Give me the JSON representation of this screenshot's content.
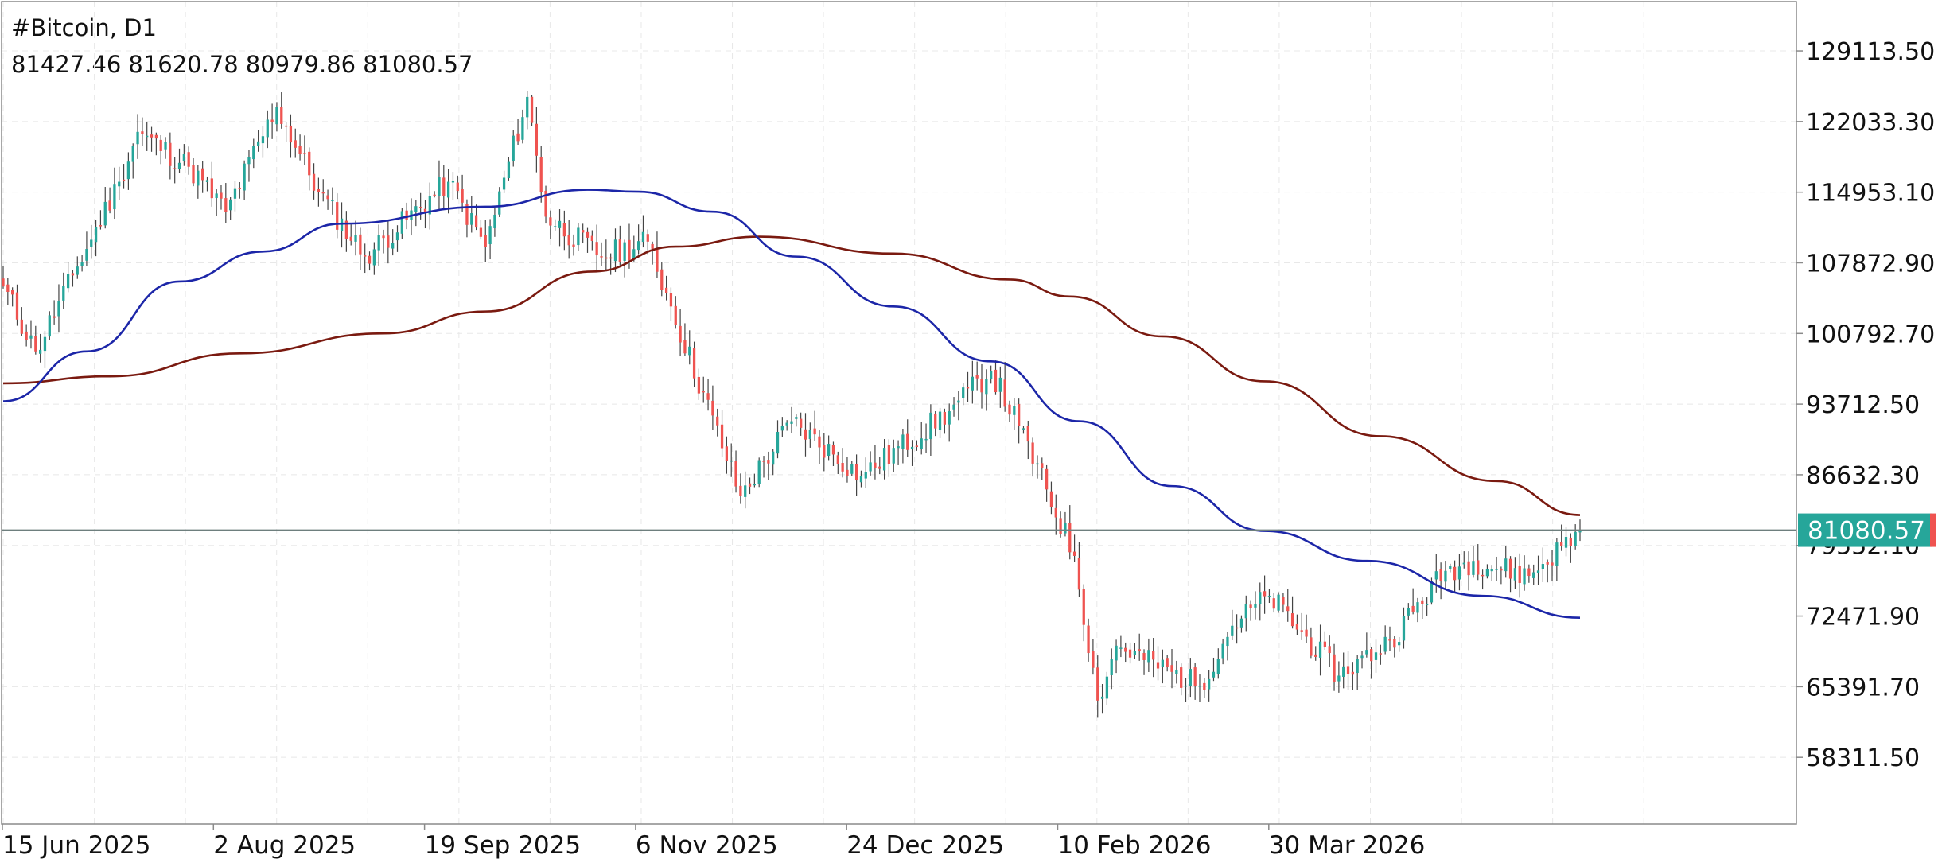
{
  "header": {
    "symbol_timeframe": "#Bitcoin, D1",
    "ohlc": [
      "81427.46",
      "81620.78",
      "80979.86",
      "81080.57"
    ]
  },
  "colors": {
    "bull": "#26a69a",
    "bear": "#ef5350",
    "wick": "#444444",
    "ma_fast": "#1c26a8",
    "ma_slow": "#7a1a10",
    "last_price_line": "#6e7f7e",
    "last_price_badge": "#26a69a",
    "grid": "#e8e8e8",
    "frame": "#8a8a8a"
  },
  "chart_data": {
    "type": "candlestick",
    "timeframe": "D1",
    "y_axis": {
      "ticks": [
        129113.5,
        122033.3,
        114953.1,
        107872.9,
        100792.7,
        93712.5,
        86632.3,
        79552.1,
        72471.9,
        65391.7,
        58311.5
      ],
      "tick_labels": [
        "129113.50",
        "122033.30",
        "114953.10",
        "107872.90",
        "100792.70",
        "93712.50",
        "86632.30",
        "79552.10",
        "72471.90",
        "65391.70",
        "58311.50"
      ],
      "range": [
        51630,
        134060
      ]
    },
    "x_axis": {
      "tick_labels": [
        "15 Jun 2025",
        "2 Aug 2025",
        "19 Sep 2025",
        "6 Nov 2025",
        "24 Dec 2025",
        "10 Feb 2026",
        "30 Mar 2026"
      ],
      "start_date": "2025-06-15",
      "end_date": "2026-05-21"
    },
    "last_price": 81080.57,
    "last_price_label": "81080.57",
    "key_points": [
      {
        "date": "2025-06-15",
        "close": 105500
      },
      {
        "date": "2025-06-22",
        "close": 99000
      },
      {
        "date": "2025-07-01",
        "close": 107500
      },
      {
        "date": "2025-07-10",
        "close": 116000
      },
      {
        "date": "2025-07-14",
        "close": 121000
      },
      {
        "date": "2025-07-25",
        "close": 117500
      },
      {
        "date": "2025-08-02",
        "close": 113000
      },
      {
        "date": "2025-08-13",
        "close": 123500
      },
      {
        "date": "2025-08-22",
        "close": 115000
      },
      {
        "date": "2025-09-01",
        "close": 108500
      },
      {
        "date": "2025-09-19",
        "close": 116000
      },
      {
        "date": "2025-09-27",
        "close": 109500
      },
      {
        "date": "2025-10-06",
        "close": 124500
      },
      {
        "date": "2025-10-10",
        "close": 112500
      },
      {
        "date": "2025-10-22",
        "close": 108500
      },
      {
        "date": "2025-11-01",
        "close": 110000
      },
      {
        "date": "2025-11-06",
        "close": 103500
      },
      {
        "date": "2025-11-21",
        "close": 84500
      },
      {
        "date": "2025-12-02",
        "close": 92000
      },
      {
        "date": "2025-12-17",
        "close": 86500
      },
      {
        "date": "2026-01-05",
        "close": 93000
      },
      {
        "date": "2026-01-14",
        "close": 97000
      },
      {
        "date": "2026-01-20",
        "close": 91500
      },
      {
        "date": "2026-02-01",
        "close": 78500
      },
      {
        "date": "2026-02-06",
        "close": 64000
      },
      {
        "date": "2026-02-10",
        "close": 69500
      },
      {
        "date": "2026-02-28",
        "close": 65500
      },
      {
        "date": "2026-03-07",
        "close": 71500
      },
      {
        "date": "2026-03-15",
        "close": 74500
      },
      {
        "date": "2026-03-30",
        "close": 66500
      },
      {
        "date": "2026-04-10",
        "close": 70000
      },
      {
        "date": "2026-04-22",
        "close": 77000
      },
      {
        "date": "2026-04-28",
        "close": 78000
      },
      {
        "date": "2026-05-10",
        "close": 76500
      },
      {
        "date": "2026-05-21",
        "close": 81080.57
      }
    ],
    "series": [
      {
        "kind": "moving-average-fast",
        "color": "#1c26a8",
        "points": [
          {
            "date": "2025-06-15",
            "value": 94000
          },
          {
            "date": "2025-07-03",
            "value": 99000
          },
          {
            "date": "2025-07-23",
            "value": 106000
          },
          {
            "date": "2025-08-10",
            "value": 109000
          },
          {
            "date": "2025-08-27",
            "value": 111800
          },
          {
            "date": "2025-09-27",
            "value": 113500
          },
          {
            "date": "2025-10-19",
            "value": 115200
          },
          {
            "date": "2025-10-30",
            "value": 115000
          },
          {
            "date": "2025-11-15",
            "value": 113000
          },
          {
            "date": "2025-12-03",
            "value": 108500
          },
          {
            "date": "2025-12-24",
            "value": 103500
          },
          {
            "date": "2026-01-14",
            "value": 98000
          },
          {
            "date": "2026-02-02",
            "value": 92000
          },
          {
            "date": "2026-02-22",
            "value": 85500
          },
          {
            "date": "2026-03-14",
            "value": 81000
          },
          {
            "date": "2026-04-05",
            "value": 78000
          },
          {
            "date": "2026-04-30",
            "value": 74500
          },
          {
            "date": "2026-05-21",
            "value": 72300
          }
        ]
      },
      {
        "kind": "moving-average-slow",
        "color": "#7a1a10",
        "points": [
          {
            "date": "2025-06-15",
            "value": 95800
          },
          {
            "date": "2025-07-08",
            "value": 96500
          },
          {
            "date": "2025-08-05",
            "value": 98800
          },
          {
            "date": "2025-09-05",
            "value": 100800
          },
          {
            "date": "2025-09-27",
            "value": 103000
          },
          {
            "date": "2025-10-20",
            "value": 107000
          },
          {
            "date": "2025-11-07",
            "value": 109500
          },
          {
            "date": "2025-11-25",
            "value": 110500
          },
          {
            "date": "2025-12-24",
            "value": 108800
          },
          {
            "date": "2026-01-18",
            "value": 106200
          },
          {
            "date": "2026-01-31",
            "value": 104500
          },
          {
            "date": "2026-02-20",
            "value": 100500
          },
          {
            "date": "2026-03-14",
            "value": 96000
          },
          {
            "date": "2026-04-08",
            "value": 90500
          },
          {
            "date": "2026-05-03",
            "value": 86000
          },
          {
            "date": "2026-05-21",
            "value": 82600
          }
        ]
      }
    ]
  }
}
